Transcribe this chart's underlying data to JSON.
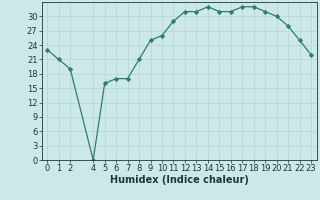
{
  "x": [
    0,
    1,
    2,
    4,
    5,
    6,
    7,
    8,
    9,
    10,
    11,
    12,
    13,
    14,
    15,
    16,
    17,
    18,
    19,
    20,
    21,
    22,
    23
  ],
  "y": [
    23,
    21,
    19,
    0,
    16,
    17,
    17,
    21,
    25,
    26,
    29,
    31,
    31,
    32,
    31,
    31,
    32,
    32,
    31,
    30,
    28,
    25,
    22
  ],
  "line_color": "#2e7d6e",
  "marker": "D",
  "marker_size": 2.2,
  "bg_color": "#cce8e8",
  "grid_color": "#b8d8d8",
  "xlabel": "Humidex (Indice chaleur)",
  "ylim": [
    0,
    33
  ],
  "xlim": [
    -0.5,
    23.5
  ],
  "yticks": [
    0,
    3,
    6,
    9,
    12,
    15,
    18,
    21,
    24,
    27,
    30
  ],
  "xticks": [
    0,
    1,
    2,
    4,
    5,
    6,
    7,
    8,
    9,
    10,
    11,
    12,
    13,
    14,
    15,
    16,
    17,
    18,
    19,
    20,
    21,
    22,
    23
  ],
  "font_color": "#1a3a3a",
  "xlabel_fontsize": 7,
  "tick_fontsize": 6,
  "line_width": 0.9
}
